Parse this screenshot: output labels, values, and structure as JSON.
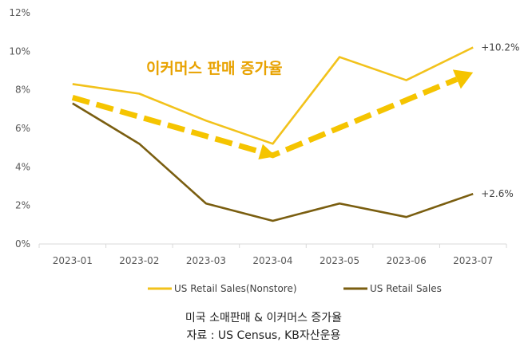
{
  "chart_data": {
    "type": "line",
    "categories": [
      "2023-01",
      "2023-02",
      "2023-03",
      "2023-04",
      "2023-05",
      "2023-06",
      "2023-07"
    ],
    "ylim": [
      0,
      12
    ],
    "yticks": [
      "0%",
      "2%",
      "4%",
      "6%",
      "8%",
      "10%",
      "12%"
    ],
    "grid": false,
    "legend_position": "bottom",
    "series": [
      {
        "name": "US Retail Sales(Nonstore)",
        "color": "#f2c21b",
        "values": [
          8.3,
          7.8,
          6.4,
          5.2,
          9.7,
          8.5,
          10.2
        ],
        "end_label": "+10.2%"
      },
      {
        "name": "US Retail Sales",
        "color": "#7a5e10",
        "values": [
          7.3,
          5.2,
          2.1,
          1.2,
          2.1,
          1.4,
          2.6
        ],
        "end_label": "+2.6%"
      }
    ],
    "annotation": {
      "text": "이커머스 판매 증가율",
      "arrow_color": "#f5c400",
      "arrow_values": [
        {
          "x": "2023-01",
          "y": 7.6
        },
        {
          "x": "2023-04",
          "y": 4.6
        },
        {
          "x": "2023-07",
          "y": 8.9
        }
      ]
    }
  },
  "caption": {
    "line1": "미국 소매판매 & 이커머스 증가율",
    "line2": "자료 : US Census, KB자산운용"
  }
}
